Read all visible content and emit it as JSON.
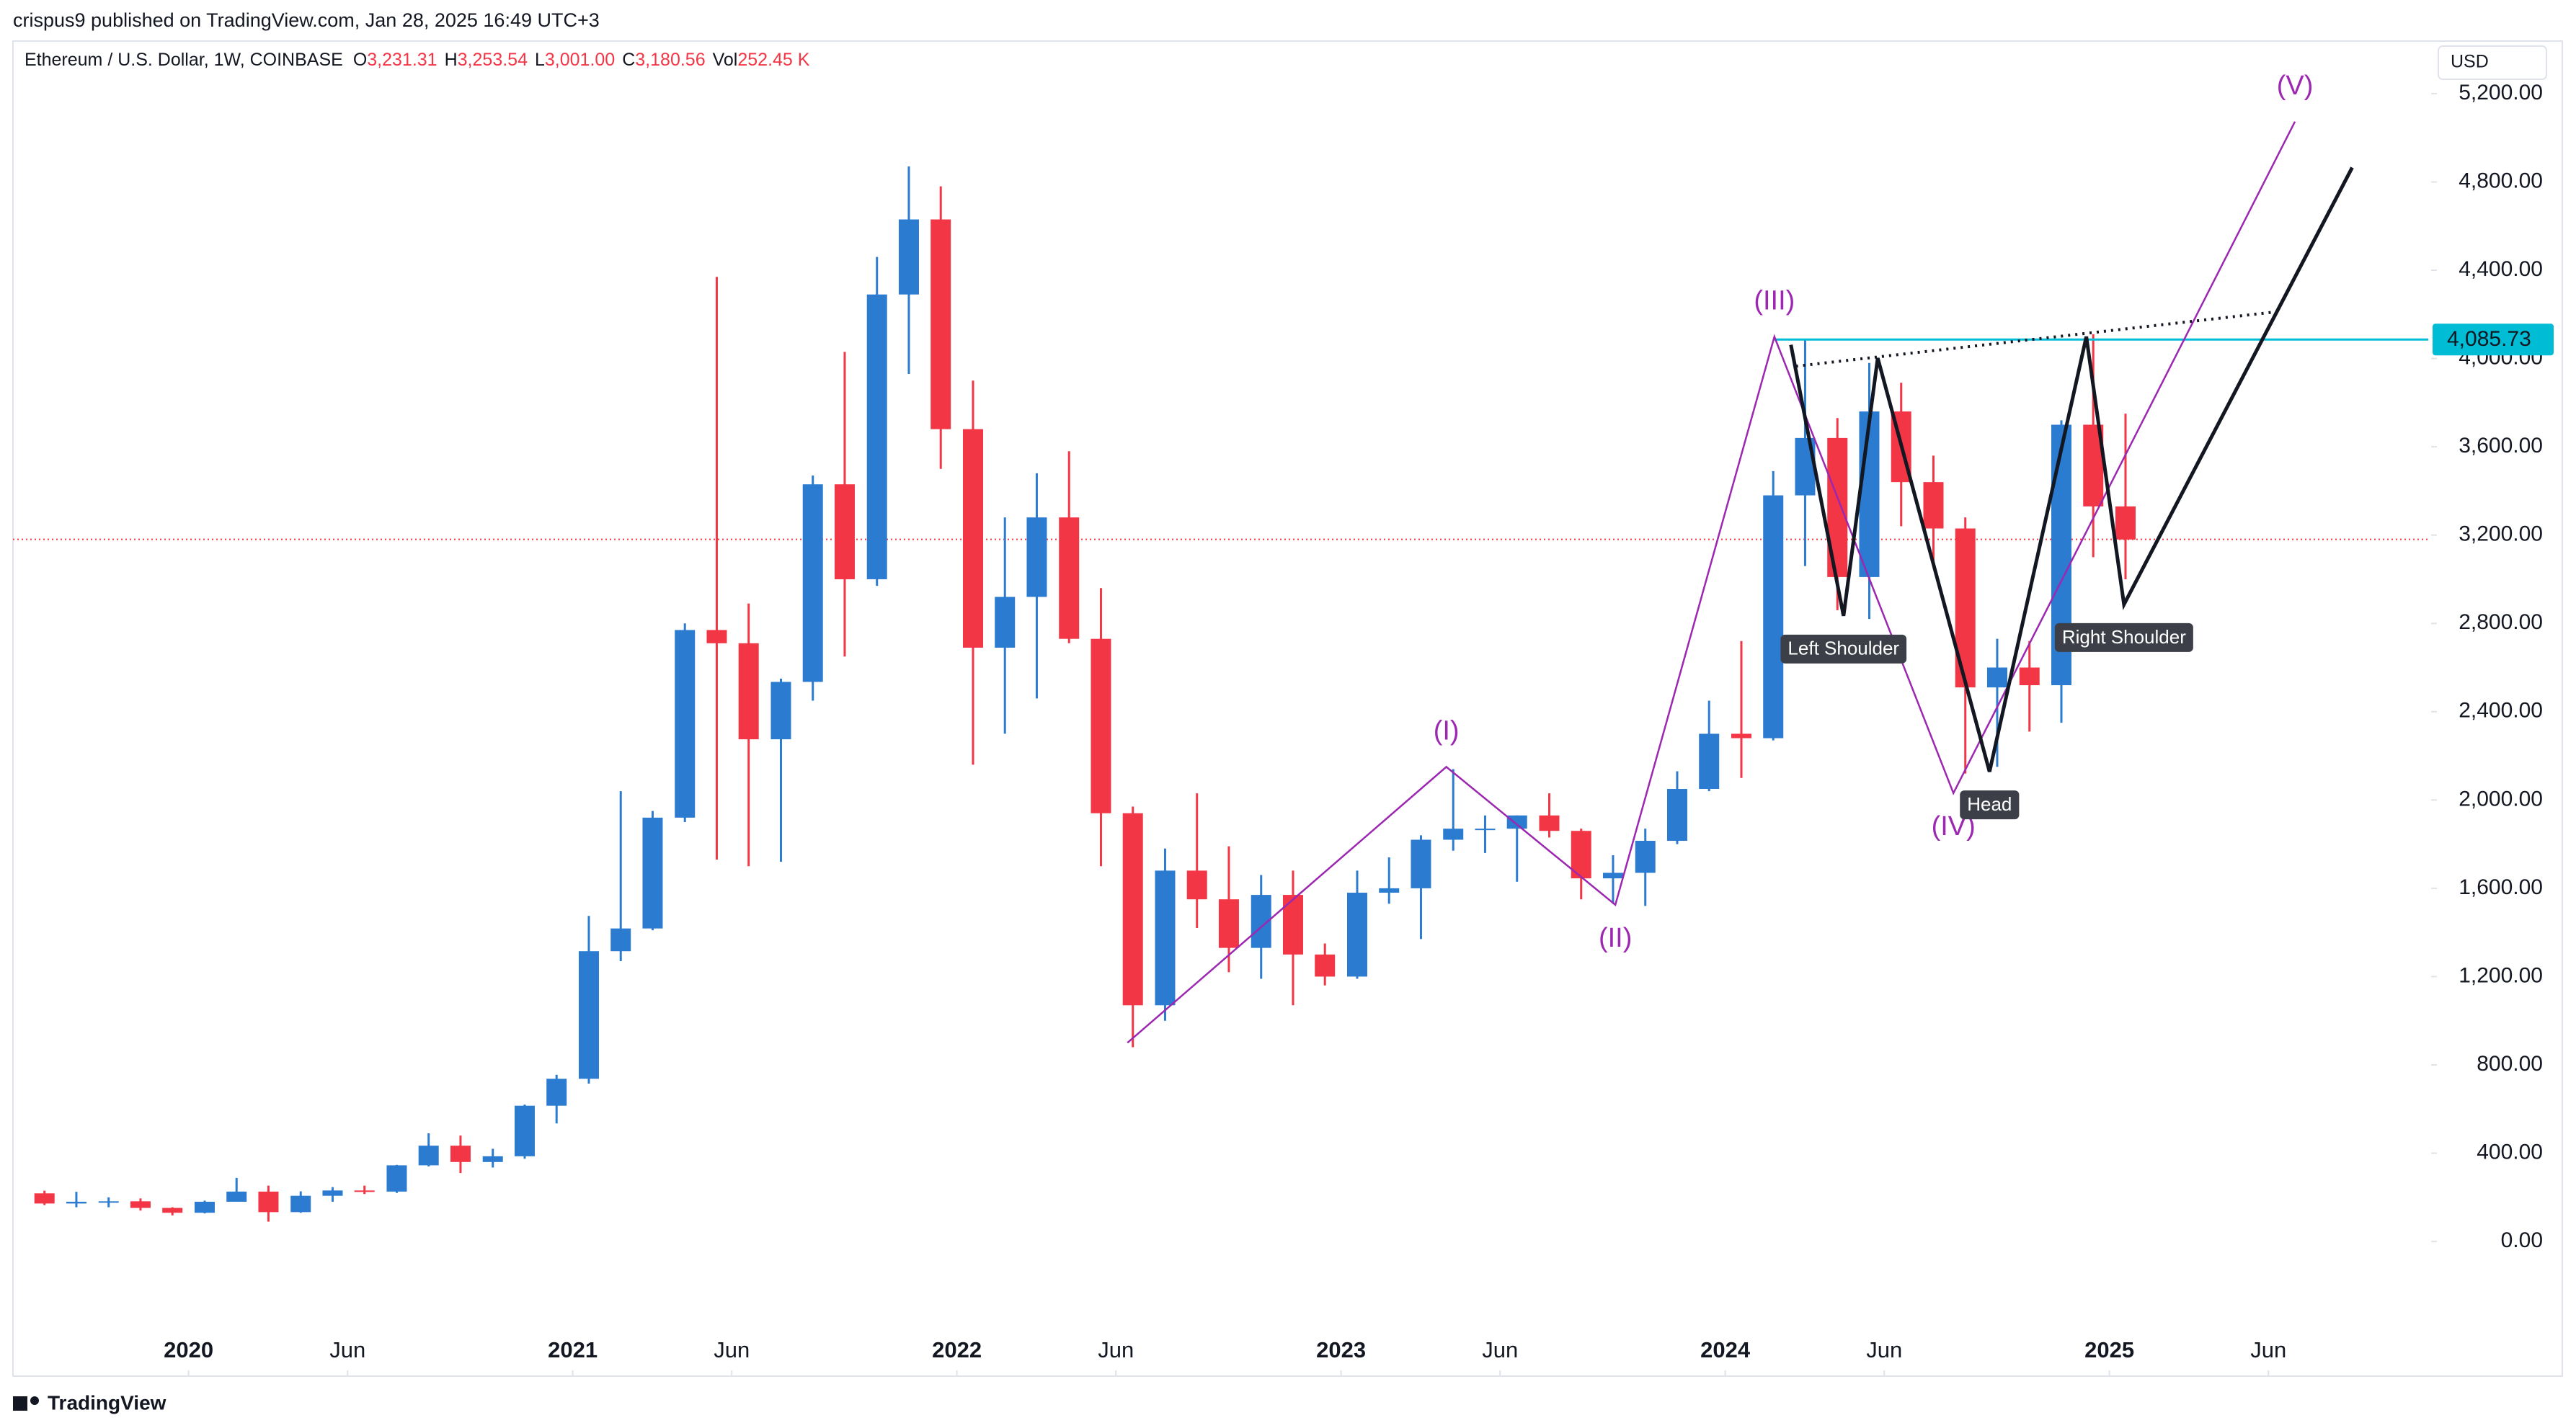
{
  "header": {
    "publisher": "crispus9 published on TradingView.com, Jan 28, 2025 16:49 UTC+3",
    "symbol": "Ethereum / U.S. Dollar, 1W, COINBASE",
    "ohlc": [
      {
        "key": "O",
        "value": "3,231.31"
      },
      {
        "key": "H",
        "value": "3,253.54"
      },
      {
        "key": "L",
        "value": "3,001.00"
      },
      {
        "key": "C",
        "value": "3,180.56"
      },
      {
        "key": "Vol",
        "value": "252.45 K"
      }
    ],
    "currency": "USD"
  },
  "footer": {
    "brand": "TradingView"
  },
  "chart_data": {
    "type": "candlestick",
    "up_color": "#2b7bd0",
    "down_color": "#f23645",
    "x": [
      2019.625,
      2019.708,
      2019.792,
      2019.875,
      2019.958,
      2020.042,
      2020.125,
      2020.208,
      2020.292,
      2020.375,
      2020.458,
      2020.542,
      2020.625,
      2020.708,
      2020.792,
      2020.875,
      2020.958,
      2021.042,
      2021.125,
      2021.208,
      2021.292,
      2021.375,
      2021.458,
      2021.542,
      2021.625,
      2021.708,
      2021.792,
      2021.875,
      2021.958,
      2022.042,
      2022.125,
      2022.208,
      2022.292,
      2022.375,
      2022.458,
      2022.542,
      2022.625,
      2022.708,
      2022.792,
      2022.875,
      2022.958,
      2023.042,
      2023.125,
      2023.208,
      2023.292,
      2023.375,
      2023.458,
      2023.542,
      2023.625,
      2023.708,
      2023.792,
      2023.875,
      2023.958,
      2024.042,
      2024.125,
      2024.208,
      2024.292,
      2024.375,
      2024.458,
      2024.542,
      2024.625,
      2024.708,
      2024.792,
      2024.875,
      2024.958,
      2025.042
    ],
    "open": [
      218,
      172,
      180,
      182,
      152,
      130,
      180,
      226,
      133,
      207,
      231,
      226,
      345,
      434,
      360,
      386,
      615,
      737,
      1315,
      1418,
      1920,
      2770,
      2710,
      2275,
      2535,
      3430,
      3000,
      4290,
      4630,
      3680,
      2690,
      2920,
      3280,
      2730,
      1940,
      1070,
      1680,
      1550,
      1330,
      1570,
      1300,
      1200,
      1580,
      1600,
      1820,
      1870,
      1870,
      1930,
      1860,
      1645,
      1670,
      1815,
      2050,
      2300,
      2280,
      3380,
      3640,
      3010,
      3760,
      3440,
      3230,
      2510,
      2600,
      2520,
      3700,
      3330
    ],
    "high": [
      230,
      225,
      200,
      195,
      155,
      185,
      288,
      253,
      227,
      246,
      253,
      347,
      490,
      480,
      420,
      620,
      755,
      1475,
      2040,
      1950,
      2800,
      4370,
      2890,
      2550,
      3470,
      4030,
      4460,
      4870,
      4780,
      3900,
      3280,
      3480,
      3580,
      2960,
      1970,
      1780,
      2030,
      1790,
      1660,
      1680,
      1350,
      1680,
      1740,
      1840,
      2140,
      1930,
      1930,
      2030,
      1870,
      1750,
      1870,
      2130,
      2450,
      2720,
      3490,
      4090,
      3730,
      3980,
      3890,
      3560,
      3280,
      2730,
      2720,
      3720,
      4110,
      3750
    ],
    "low": [
      165,
      155,
      155,
      140,
      118,
      127,
      180,
      90,
      130,
      180,
      215,
      220,
      340,
      310,
      335,
      375,
      535,
      715,
      1270,
      1410,
      1900,
      1730,
      1700,
      1720,
      2450,
      2650,
      2970,
      3930,
      3500,
      2160,
      2300,
      2460,
      2710,
      1700,
      880,
      1000,
      1420,
      1220,
      1190,
      1070,
      1160,
      1190,
      1530,
      1370,
      1770,
      1760,
      1630,
      1830,
      1550,
      1530,
      1520,
      1800,
      2040,
      2100,
      2270,
      3060,
      2860,
      2820,
      3240,
      3080,
      2120,
      2150,
      2310,
      2350,
      3100,
      3000
    ],
    "close": [
      172,
      180,
      182,
      152,
      130,
      180,
      226,
      133,
      207,
      231,
      226,
      345,
      434,
      360,
      386,
      615,
      737,
      1315,
      1418,
      1920,
      2770,
      2710,
      2275,
      2535,
      3430,
      3000,
      4290,
      4630,
      3680,
      2690,
      2920,
      3280,
      2730,
      1940,
      1070,
      1680,
      1550,
      1330,
      1570,
      1300,
      1200,
      1580,
      1600,
      1820,
      1870,
      1870,
      1930,
      1860,
      1645,
      1670,
      1815,
      2050,
      2300,
      2280,
      3380,
      3640,
      3010,
      3760,
      3440,
      3230,
      2510,
      2600,
      2520,
      3700,
      3330,
      3180
    ],
    "xlim": [
      2019.543,
      2025.83
    ],
    "xticks": [
      2020,
      {
        "value": 2020.414,
        "label": "Jun"
      },
      2021,
      {
        "value": 2021.414,
        "label": "Jun"
      },
      2022,
      {
        "value": 2022.414,
        "label": "Jun"
      },
      2023,
      {
        "value": 2023.414,
        "label": "Jun"
      },
      2024,
      {
        "value": 2024.414,
        "label": "Jun"
      },
      2025,
      {
        "value": 2025.414,
        "label": "Jun"
      }
    ],
    "ylim": [
      -610,
      5438
    ],
    "yticks": [
      {
        "value": 0,
        "label": "0.00"
      },
      {
        "value": 400,
        "label": "400.00"
      },
      {
        "value": 800,
        "label": "800.00"
      },
      {
        "value": 1200,
        "label": "1,200.00"
      },
      {
        "value": 1600,
        "label": "1,600.00"
      },
      {
        "value": 2000,
        "label": "2,000.00"
      },
      {
        "value": 2400,
        "label": "2,400.00"
      },
      {
        "value": 2800,
        "label": "2,800.00"
      },
      {
        "value": 3200,
        "label": "3,200.00"
      },
      {
        "value": 3600,
        "label": "3,600.00"
      },
      {
        "value": 4000,
        "label": "4,000.00"
      },
      {
        "value": 4400,
        "label": "4,400.00"
      },
      {
        "value": 4800,
        "label": "4,800.00"
      },
      {
        "value": 5200,
        "label": "5,200.00"
      }
    ],
    "grid": false,
    "current_price": {
      "value": 3180.56,
      "color": "#f23645"
    },
    "price_line": {
      "value": 4085.73,
      "label": "4,085.73",
      "color": "#00bcd4"
    },
    "wave": {
      "color": "#9c27b0",
      "points": [
        {
          "x": 2022.444,
          "y": 900
        },
        {
          "x": 2023.274,
          "y": 2150,
          "label": "(I)"
        },
        {
          "x": 2023.714,
          "y": 1525,
          "label": "(II)"
        },
        {
          "x": 2024.128,
          "y": 4099,
          "label": "(III)"
        },
        {
          "x": 2024.594,
          "y": 2031,
          "label": "(IV)"
        },
        {
          "x": 2025.483,
          "y": 5073,
          "label": "(V)"
        }
      ]
    },
    "pattern": {
      "color": "#131722",
      "points": [
        {
          "x": 2024.171,
          "y": 4062
        },
        {
          "x": 2024.308,
          "y": 2834,
          "label": "Left Shoulder"
        },
        {
          "x": 2024.397,
          "y": 4002
        },
        {
          "x": 2024.688,
          "y": 2128,
          "label": "Head"
        },
        {
          "x": 2024.94,
          "y": 4099
        },
        {
          "x": 2025.038,
          "y": 2886,
          "label": "Right Shoulder"
        },
        {
          "x": 2025.632,
          "y": 4865
        }
      ]
    },
    "neckline": {
      "color": "#131722",
      "points": [
        {
          "x": 2024.184,
          "y": 3965
        },
        {
          "x": 2025.432,
          "y": 4211
        }
      ]
    }
  }
}
